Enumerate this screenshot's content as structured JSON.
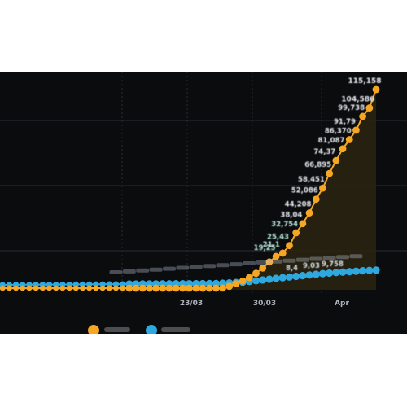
{
  "chart_data": {
    "type": "line",
    "title": "",
    "xlabel": "",
    "ylabel": "",
    "x_tick_labels": [
      "23/03",
      "30/03",
      "Apr"
    ],
    "orange_visible_labels": [
      "115,158",
      "104,586",
      "99,738",
      "91,79",
      "86,370",
      "81,087",
      "74,37",
      "66,895",
      "58,451",
      "52,086",
      "44,208",
      "38,04",
      "32,754",
      "25,43",
      "21,1",
      "19,25"
    ],
    "blue_visible_labels": [
      "9,758",
      "9,03",
      "8,4"
    ],
    "series": [
      {
        "color": "#f5a623",
        "values": [
          0,
          0,
          0,
          0,
          0,
          0,
          0,
          0,
          0,
          0,
          0,
          0,
          0,
          0,
          0,
          0,
          0,
          0,
          0,
          0,
          0,
          0,
          0,
          0,
          0,
          0,
          0,
          0,
          0,
          0,
          0,
          0,
          0,
          0,
          1000,
          2000,
          3500,
          5000,
          7000,
          9500,
          12500,
          16000,
          19250,
          21100,
          25430,
          32754,
          38040,
          44208,
          52086,
          58451,
          66895,
          74370,
          81087,
          86370,
          91790,
          99738,
          104586,
          115158
        ]
      },
      {
        "color": "#2fa8e0",
        "values": [
          0,
          0,
          0,
          0,
          0,
          0,
          0,
          0,
          0,
          0,
          0,
          0,
          0,
          0,
          0,
          0,
          0,
          0,
          0,
          0,
          0,
          0,
          0,
          0,
          0,
          0,
          0,
          0,
          0,
          0,
          0,
          0,
          0,
          0,
          200,
          400,
          700,
          1000,
          1500,
          2000,
          2600,
          3200,
          3800,
          4300,
          4800,
          5300,
          5800,
          6300,
          6800,
          7300,
          7700,
          8100,
          8400,
          8700,
          9030,
          9350,
          9600,
          9758
        ]
      }
    ],
    "grid": true,
    "legend_placement": "bottom"
  },
  "colors": {
    "background": "#0b0c0e",
    "orange": "#f5a623",
    "blue": "#2fa8e0",
    "area_fill": "#2a2410",
    "gridline": "#2a2c30"
  }
}
